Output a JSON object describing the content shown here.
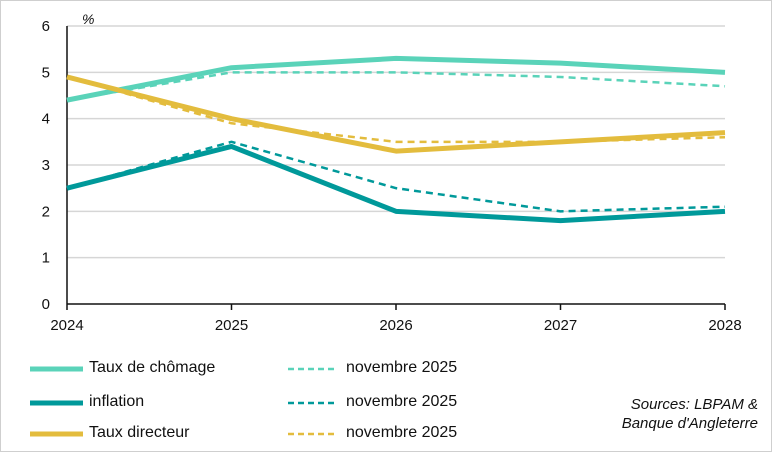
{
  "chart_data": {
    "type": "line",
    "ylabel": "%",
    "ylim": [
      0,
      6
    ],
    "yticks": [
      "0",
      "1",
      "2",
      "3",
      "4",
      "5",
      "6"
    ],
    "x": [
      "2024",
      "2025",
      "2026",
      "2027",
      "2028"
    ],
    "grid": true,
    "legend_placement": "bottom",
    "series": [
      {
        "name": "Taux de chômage",
        "color": "#5ad3b9",
        "style": "solid",
        "values": [
          4.4,
          5.1,
          5.3,
          5.2,
          5.0
        ]
      },
      {
        "name": "inflation",
        "color": "#00999a",
        "style": "solid",
        "values": [
          2.5,
          3.4,
          2.0,
          1.8,
          2.0
        ]
      },
      {
        "name": "Taux directeur",
        "color": "#e3bc3d",
        "style": "solid",
        "values": [
          4.9,
          4.0,
          3.3,
          3.5,
          3.7
        ]
      },
      {
        "name": "novembre 2025",
        "color": "#5ad3b9",
        "style": "dashed",
        "values": [
          4.4,
          5.0,
          5.0,
          4.9,
          4.7
        ]
      },
      {
        "name": "novembre 2025",
        "color": "#00999a",
        "style": "dashed",
        "values": [
          2.5,
          3.5,
          2.5,
          2.0,
          2.1
        ]
      },
      {
        "name": "novembre 2025",
        "color": "#e3bc3d",
        "style": "dashed",
        "values": [
          4.9,
          3.9,
          3.5,
          3.5,
          3.6
        ]
      }
    ]
  },
  "sources": {
    "line1": "Sources: LBPAM &",
    "line2": "Banque d'Angleterre"
  }
}
